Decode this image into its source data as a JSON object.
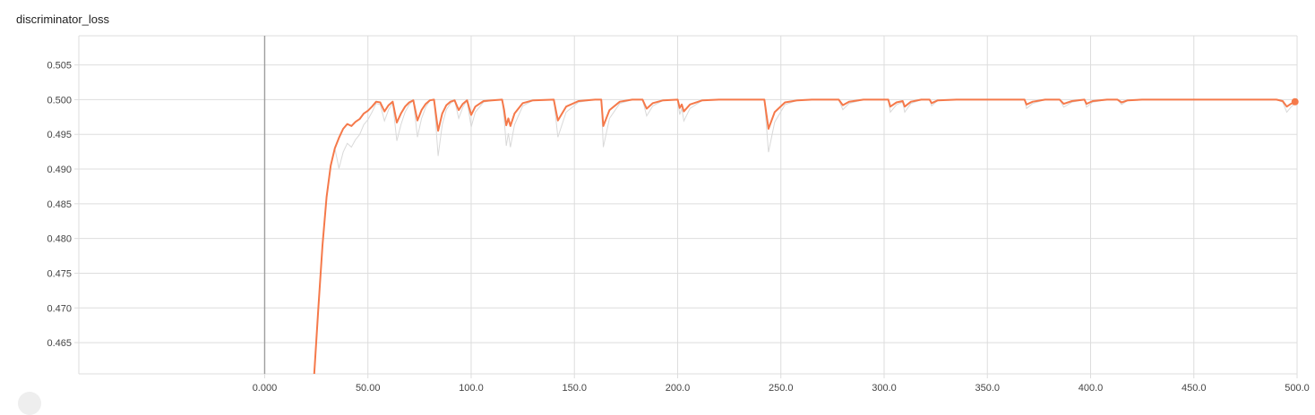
{
  "title": "discriminator_loss",
  "colors": {
    "series": "#f5794a",
    "raw": "#d9d9d9",
    "grid": "#dddddd",
    "zero_axis": "#9e9e9e"
  },
  "chart_data": {
    "type": "line",
    "title": "discriminator_loss",
    "xlabel": "",
    "ylabel": "",
    "xlim": [
      -90,
      500
    ],
    "ylim": [
      0.4605,
      0.5092
    ],
    "grid": true,
    "x_ticks": [
      0,
      50,
      100,
      150,
      200,
      250,
      300,
      350,
      400,
      450,
      500
    ],
    "x_tick_labels": [
      "0.000",
      "50.00",
      "100.0",
      "150.0",
      "200.0",
      "250.0",
      "300.0",
      "350.0",
      "400.0",
      "450.0",
      "500.0"
    ],
    "y_ticks": [
      0.465,
      0.47,
      0.475,
      0.48,
      0.485,
      0.49,
      0.495,
      0.5,
      0.505
    ],
    "y_tick_labels": [
      "0.465",
      "0.470",
      "0.475",
      "0.480",
      "0.485",
      "0.490",
      "0.495",
      "0.500",
      "0.505"
    ],
    "series": [
      {
        "name": "",
        "values": [
          [
            24,
            0.4605
          ],
          [
            26,
            0.47
          ],
          [
            28,
            0.479
          ],
          [
            30,
            0.486
          ],
          [
            32,
            0.4905
          ],
          [
            34,
            0.493
          ],
          [
            36,
            0.4945
          ],
          [
            38,
            0.4958
          ],
          [
            40,
            0.4965
          ],
          [
            42,
            0.4962
          ],
          [
            44,
            0.4968
          ],
          [
            46,
            0.4972
          ],
          [
            48,
            0.498
          ],
          [
            50,
            0.4984
          ],
          [
            52,
            0.499
          ],
          [
            54,
            0.4997
          ],
          [
            56,
            0.4996
          ],
          [
            58,
            0.4983
          ],
          [
            60,
            0.4992
          ],
          [
            62,
            0.4997
          ],
          [
            64,
            0.4967
          ],
          [
            66,
            0.498
          ],
          [
            68,
            0.499
          ],
          [
            70,
            0.4996
          ],
          [
            72,
            0.4999
          ],
          [
            74,
            0.497
          ],
          [
            76,
            0.4985
          ],
          [
            78,
            0.4994
          ],
          [
            80,
            0.4999
          ],
          [
            82,
            0.5
          ],
          [
            84,
            0.4955
          ],
          [
            86,
            0.498
          ],
          [
            88,
            0.4992
          ],
          [
            90,
            0.4997
          ],
          [
            92,
            0.4999
          ],
          [
            94,
            0.4985
          ],
          [
            96,
            0.4994
          ],
          [
            98,
            0.4999
          ],
          [
            100,
            0.4978
          ],
          [
            102,
            0.499
          ],
          [
            106,
            0.4998
          ],
          [
            110,
            0.4999
          ],
          [
            115,
            0.5
          ],
          [
            116,
            0.4985
          ],
          [
            117,
            0.4963
          ],
          [
            118,
            0.4973
          ],
          [
            119,
            0.4962
          ],
          [
            121,
            0.498
          ],
          [
            125,
            0.4995
          ],
          [
            130,
            0.4999
          ],
          [
            140,
            0.5
          ],
          [
            142,
            0.497
          ],
          [
            146,
            0.499
          ],
          [
            152,
            0.4998
          ],
          [
            160,
            0.5
          ],
          [
            163,
            0.5
          ],
          [
            164,
            0.4962
          ],
          [
            167,
            0.4985
          ],
          [
            172,
            0.4997
          ],
          [
            178,
            0.5
          ],
          [
            183,
            0.5
          ],
          [
            185,
            0.4987
          ],
          [
            188,
            0.4995
          ],
          [
            193,
            0.4999
          ],
          [
            200,
            0.5
          ],
          [
            201,
            0.4988
          ],
          [
            202,
            0.4993
          ],
          [
            203,
            0.4983
          ],
          [
            206,
            0.4993
          ],
          [
            212,
            0.4999
          ],
          [
            220,
            0.5
          ],
          [
            242,
            0.5
          ],
          [
            244,
            0.4958
          ],
          [
            247,
            0.4982
          ],
          [
            252,
            0.4996
          ],
          [
            258,
            0.4999
          ],
          [
            265,
            0.5
          ],
          [
            278,
            0.5
          ],
          [
            280,
            0.4992
          ],
          [
            283,
            0.4997
          ],
          [
            290,
            0.5
          ],
          [
            302,
            0.5
          ],
          [
            303,
            0.499
          ],
          [
            306,
            0.4996
          ],
          [
            309,
            0.4998
          ],
          [
            310,
            0.499
          ],
          [
            313,
            0.4997
          ],
          [
            318,
            0.5
          ],
          [
            322,
            0.5
          ],
          [
            323,
            0.4995
          ],
          [
            326,
            0.4999
          ],
          [
            335,
            0.5
          ],
          [
            368,
            0.5
          ],
          [
            369,
            0.4993
          ],
          [
            372,
            0.4997
          ],
          [
            378,
            0.5
          ],
          [
            385,
            0.5
          ],
          [
            387,
            0.4994
          ],
          [
            391,
            0.4998
          ],
          [
            397,
            0.5
          ],
          [
            398,
            0.4994
          ],
          [
            401,
            0.4998
          ],
          [
            408,
            0.5
          ],
          [
            413,
            0.5
          ],
          [
            415,
            0.4996
          ],
          [
            418,
            0.4999
          ],
          [
            425,
            0.5
          ],
          [
            490,
            0.5
          ],
          [
            493,
            0.4998
          ],
          [
            495,
            0.499
          ],
          [
            497,
            0.4994
          ],
          [
            499,
            0.4997
          ]
        ]
      }
    ],
    "last_point": [
      499,
      0.4997
    ]
  }
}
